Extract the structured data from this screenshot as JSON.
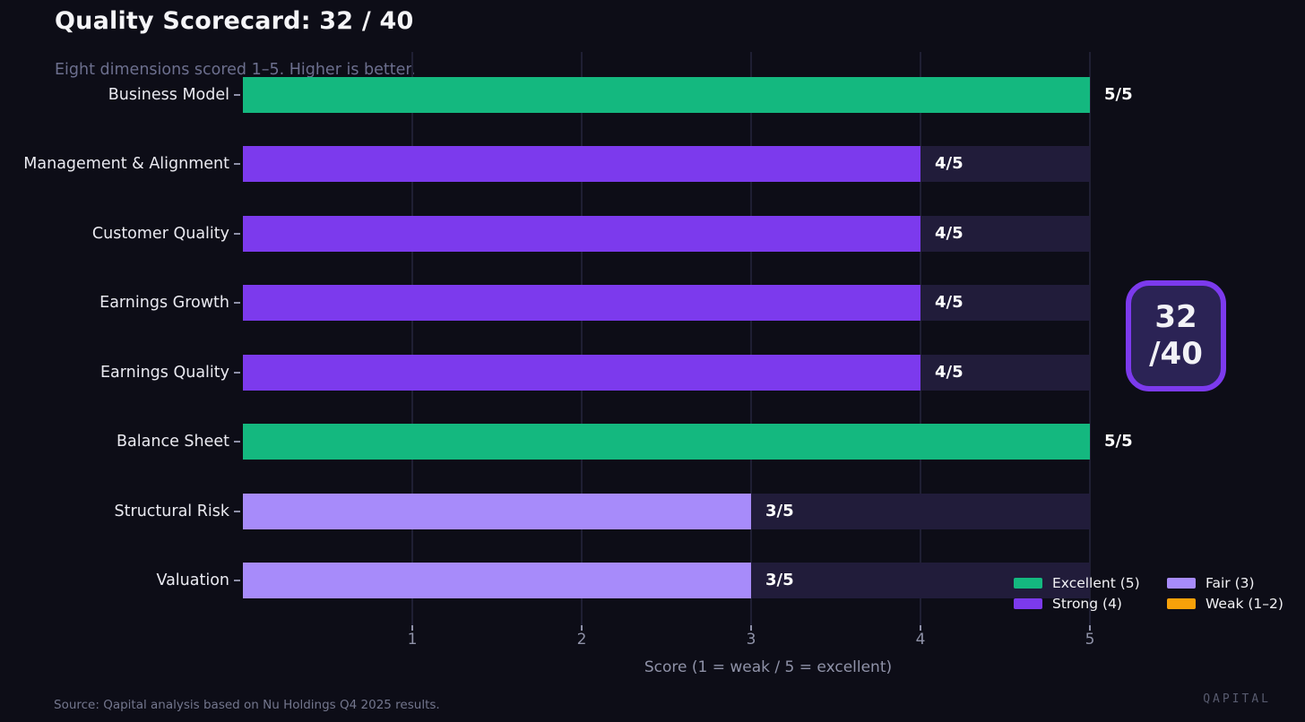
{
  "header": {
    "title": "Quality Scorecard: 32 / 40",
    "subtitle": "Eight dimensions scored 1–5. Higher is better."
  },
  "badge": {
    "line1": "32",
    "line2": "/40"
  },
  "chart_data": {
    "type": "bar",
    "orientation": "horizontal",
    "title": "Quality Scorecard: 32 / 40",
    "subtitle": "Eight dimensions scored 1–5. Higher is better.",
    "categories": [
      "Business Model",
      "Management & Alignment",
      "Customer Quality",
      "Earnings Growth",
      "Earnings Quality",
      "Balance Sheet",
      "Structural Risk",
      "Valuation"
    ],
    "values": [
      5,
      4,
      4,
      4,
      4,
      5,
      3,
      3
    ],
    "value_labels": [
      "5/5",
      "4/5",
      "4/5",
      "4/5",
      "4/5",
      "5/5",
      "3/5",
      "3/5"
    ],
    "total_score": "32 / 40",
    "xlabel": "Score (1 = weak / 5 = excellent)",
    "xlim": [
      0,
      5
    ],
    "xticks": [
      "1",
      "2",
      "3",
      "4",
      "5"
    ],
    "grid": true,
    "legend_position": "lower right",
    "legend": [
      {
        "label": "Excellent (5)",
        "color": "#14b87f"
      },
      {
        "label": "Strong (4)",
        "color": "#7c3aed"
      },
      {
        "label": "Fair (3)",
        "color": "#a78bfa"
      },
      {
        "label": "Weak (1–2)",
        "color": "#f7a109"
      }
    ],
    "tier_colors": {
      "5": "#14b87f",
      "4": "#7c3aed",
      "3": "#a78bfa",
      "weak": "#f7a109"
    },
    "accent_colors": {
      "background": "#0d0d17",
      "bar_track": "#211c3a",
      "badge_border": "#7c3aed",
      "badge_fill": "#2b2355"
    }
  },
  "footer": {
    "source": "Source: Qapital analysis based on Nu Holdings Q4 2025 results.",
    "watermark": "QAPITAL"
  }
}
